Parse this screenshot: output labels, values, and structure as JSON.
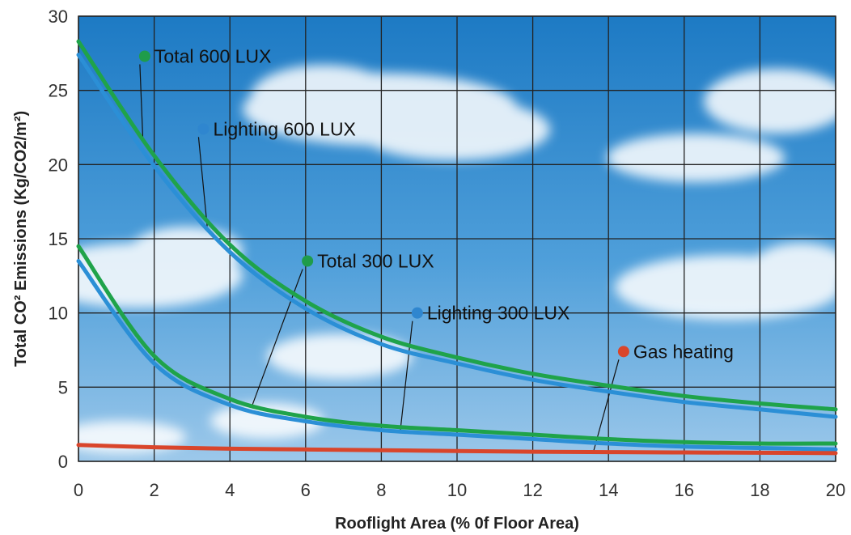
{
  "chart_data": {
    "type": "line",
    "title": "",
    "xlabel": "Rooflight Area (% 0f Floor Area)",
    "ylabel": "Total CO² Emissions (Kg/CO2/m²)",
    "xlim": [
      0,
      20
    ],
    "ylim": [
      0,
      30
    ],
    "xticks": [
      0,
      2,
      4,
      6,
      8,
      10,
      12,
      14,
      16,
      18,
      20
    ],
    "yticks": [
      0,
      5,
      10,
      15,
      20,
      25,
      30
    ],
    "grid": true,
    "legend": "inline-callouts",
    "x": [
      0,
      2,
      4,
      6,
      8,
      10,
      12,
      14,
      16,
      18,
      20
    ],
    "series": [
      {
        "name": "Total 600 LUX",
        "color": "#1fa34a",
        "marker_color": "#1f9c4a",
        "values": [
          28.3,
          20.6,
          14.6,
          10.8,
          8.4,
          7.0,
          5.9,
          5.1,
          4.4,
          3.9,
          3.5
        ]
      },
      {
        "name": "Lighting 600 LUX",
        "color": "#2b8fd6",
        "marker_color": "#2f86cf",
        "values": [
          27.4,
          19.9,
          14.1,
          10.3,
          7.9,
          6.6,
          5.5,
          4.7,
          4.0,
          3.5,
          3.0
        ]
      },
      {
        "name": "Total 300 LUX",
        "color": "#1fa34a",
        "marker_color": "#1f9c4a",
        "values": [
          14.5,
          7.1,
          4.2,
          3.0,
          2.4,
          2.1,
          1.8,
          1.5,
          1.3,
          1.2,
          1.2
        ]
      },
      {
        "name": "Lighting 300 LUX",
        "color": "#2b8fd6",
        "marker_color": "#2f86cf",
        "values": [
          13.5,
          6.6,
          3.8,
          2.7,
          2.1,
          1.8,
          1.5,
          1.2,
          1.0,
          0.9,
          0.8
        ]
      },
      {
        "name": "Gas heating",
        "color": "#d9452b",
        "marker_color": "#d9452b",
        "values": [
          1.1,
          0.95,
          0.85,
          0.8,
          0.75,
          0.7,
          0.65,
          0.62,
          0.6,
          0.58,
          0.55
        ]
      }
    ],
    "callouts": [
      {
        "series": 0,
        "label": "Total 600 LUX",
        "label_x": 1.75,
        "label_y": 27.3,
        "leader_x": 1.7
      },
      {
        "series": 1,
        "label": "Lighting 600 LUX",
        "label_x": 3.3,
        "label_y": 22.4,
        "leader_x": 3.4
      },
      {
        "series": 2,
        "label": "Total 300 LUX",
        "label_x": 6.05,
        "label_y": 13.5,
        "leader_x": 4.6
      },
      {
        "series": 3,
        "label": "Lighting 300 LUX",
        "label_x": 8.95,
        "label_y": 10.0,
        "leader_x": 8.5
      },
      {
        "series": 4,
        "label": "Gas heating",
        "label_x": 14.4,
        "label_y": 7.4,
        "leader_x": 13.6
      }
    ]
  }
}
